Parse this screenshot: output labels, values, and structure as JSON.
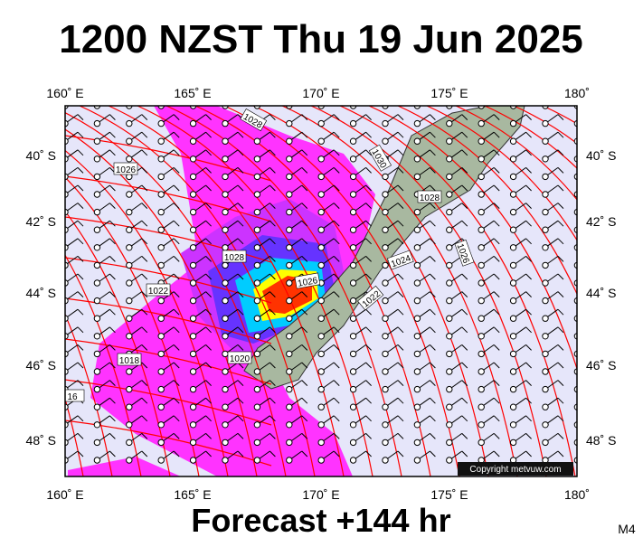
{
  "header": {
    "title": "1200 NZST Thu 19 Jun 2025"
  },
  "axes": {
    "top": [
      "160˚ E",
      "165˚ E",
      "170˚ E",
      "175˚ E",
      "180˚"
    ],
    "bottom": [
      "160˚ E",
      "165˚ E",
      "170˚ E",
      "175˚ E",
      "180˚"
    ],
    "left": [
      "40˚ S",
      "42˚ S",
      "44˚ S",
      "46˚ S",
      "48˚ S"
    ],
    "right": [
      "40˚ S",
      "42˚ S",
      "44˚ S",
      "46˚ S",
      "48˚ S"
    ]
  },
  "isobar_labels": [
    "1028",
    "1026",
    "1030",
    "1028",
    "1026",
    "1024",
    "1022",
    "1026",
    "1022",
    "1028",
    "1020",
    "1018",
    "16"
  ],
  "copyright": "Copyright metvuw.com",
  "footer": {
    "forecast": "Forecast +144 hr",
    "model": "M4"
  }
}
